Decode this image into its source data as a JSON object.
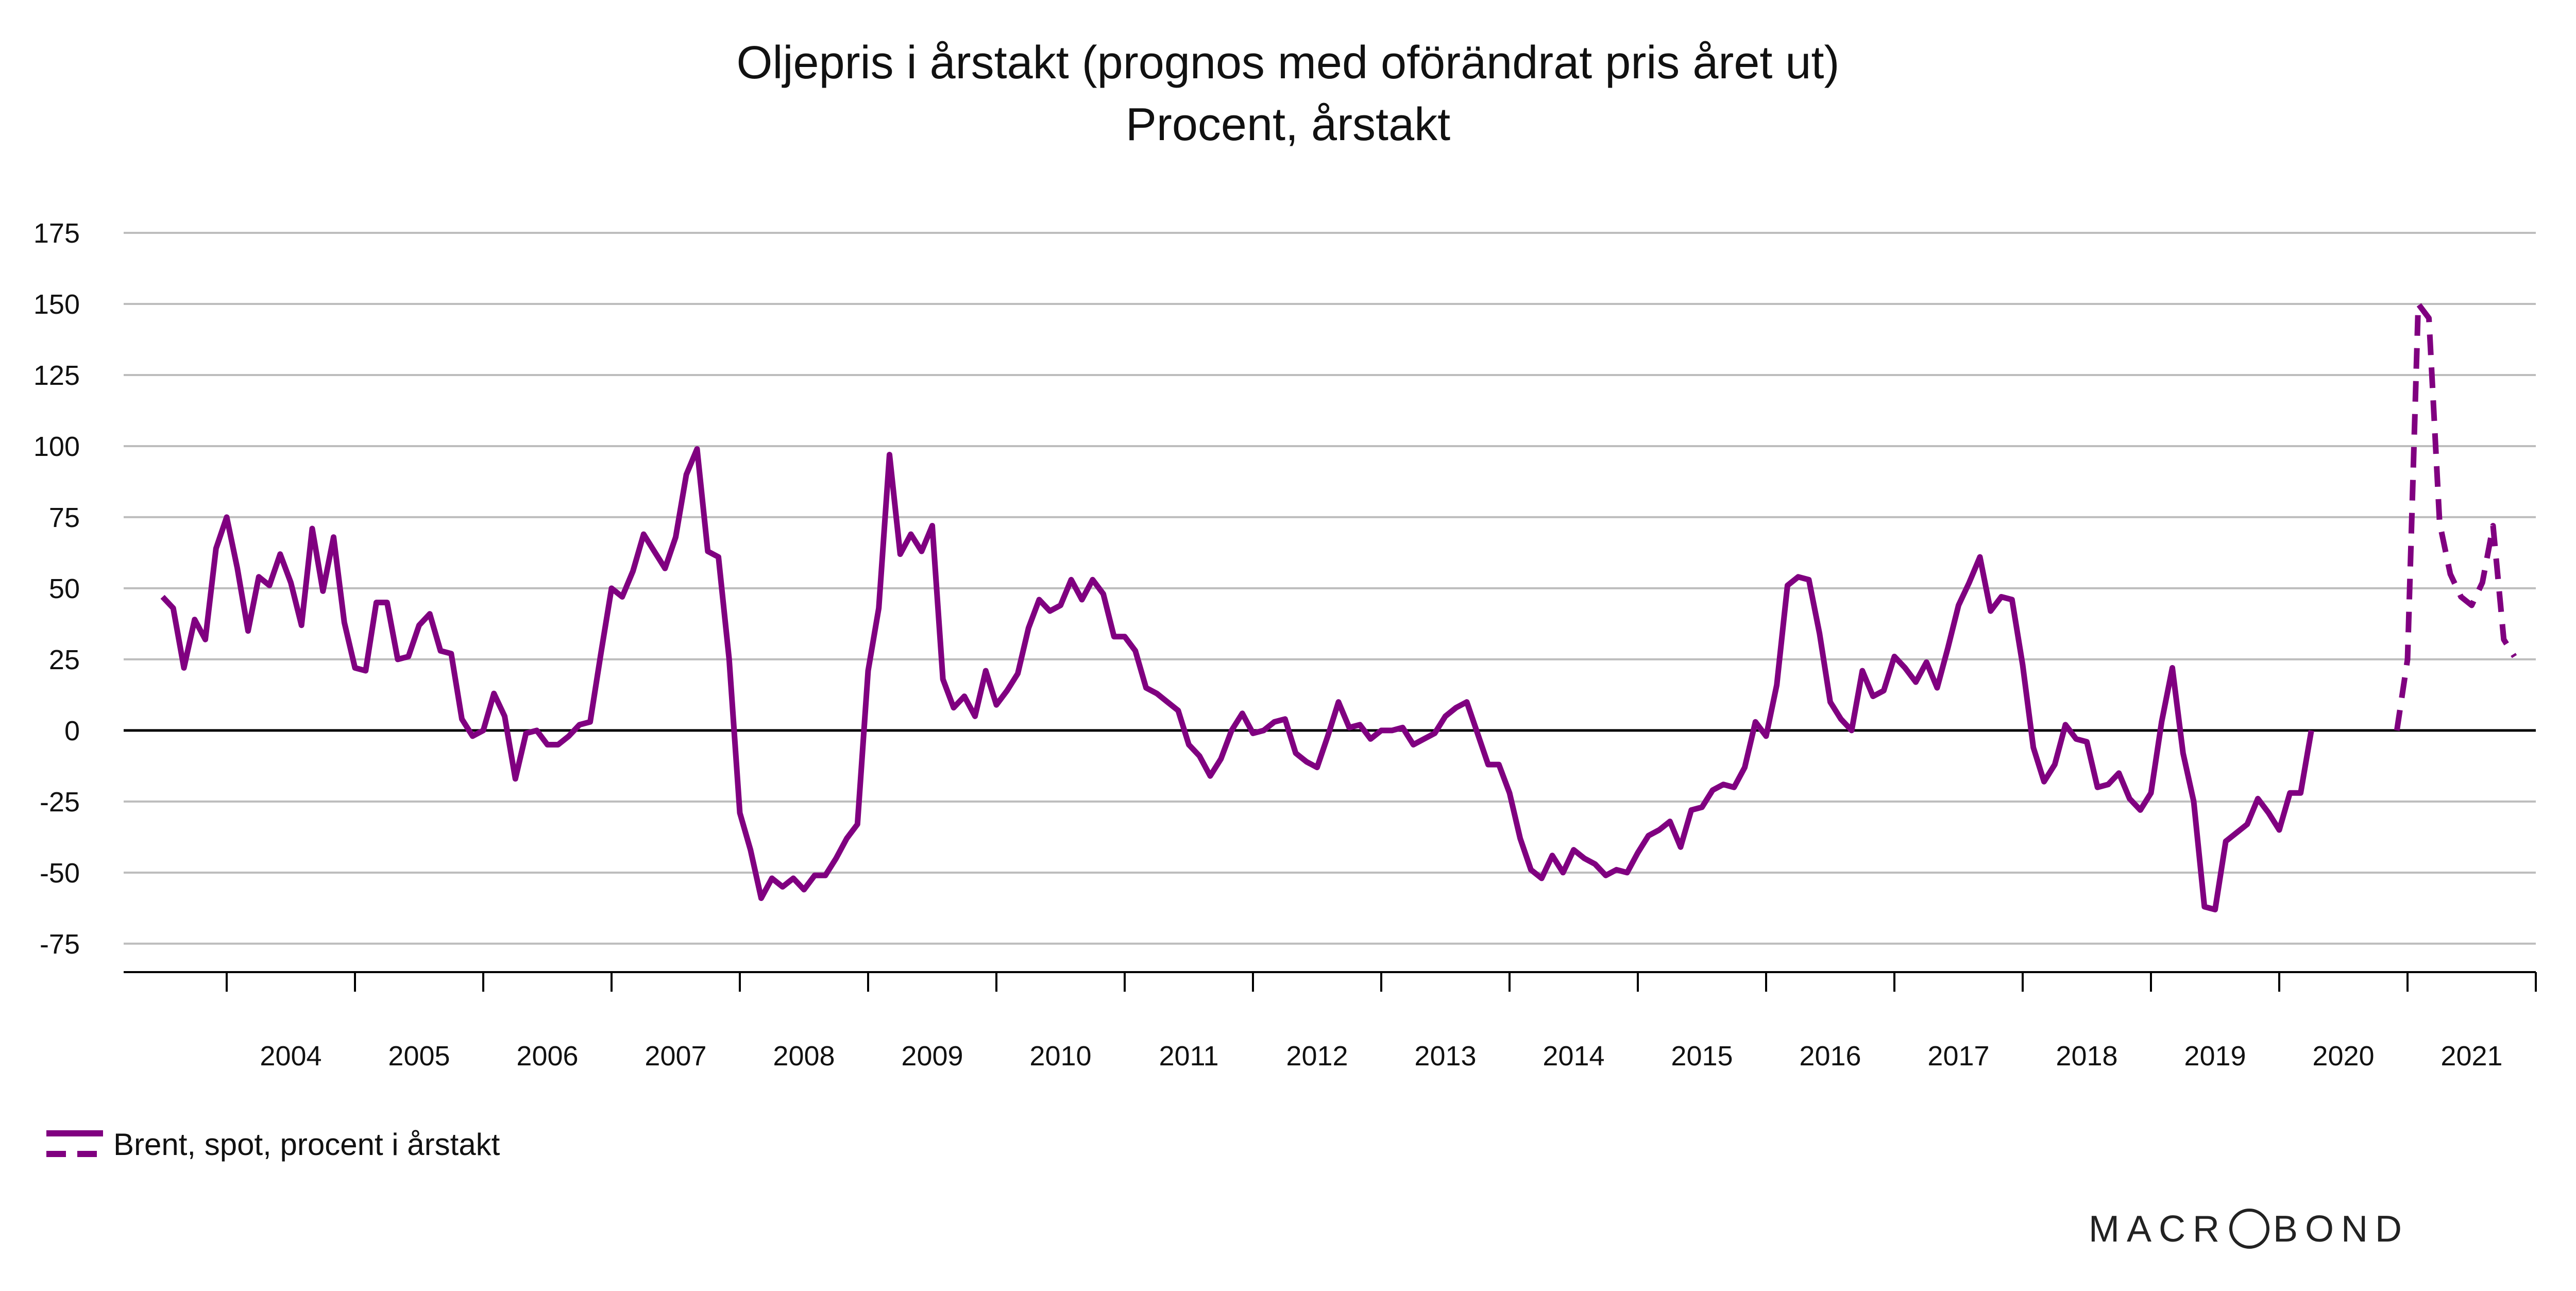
{
  "chart_data": {
    "type": "line",
    "title": "Oljepris i årstakt (prognos med oförändrat pris året ut)",
    "subtitle": "Procent, årstakt",
    "ylim": [
      -85,
      175
    ],
    "y_ticks": [
      175,
      150,
      125,
      100,
      75,
      50,
      25,
      0,
      -25,
      -50,
      -75
    ],
    "x_ticks": [
      "2004",
      "2005",
      "2006",
      "2007",
      "2008",
      "2009",
      "2010",
      "2011",
      "2012",
      "2013",
      "2014",
      "2015",
      "2016",
      "2017",
      "2018",
      "2019",
      "2020",
      "2021"
    ],
    "grid": true,
    "legend_position": "bottom-left",
    "colors": {
      "series": "#800080",
      "grid": "#bdbdbd",
      "zero_line": "#000000"
    },
    "series": [
      {
        "name": "Brent, spot, procent i årstakt",
        "style": "solid",
        "x_start": "2003-07",
        "frequency": "monthly",
        "values": [
          47,
          43,
          22,
          39,
          32,
          64,
          75,
          57,
          35,
          54,
          51,
          62,
          52,
          37,
          71,
          49,
          68,
          38,
          22,
          21,
          45,
          45,
          25,
          26,
          37,
          41,
          28,
          27,
          4,
          -2,
          0,
          13,
          5,
          -17,
          -1,
          0,
          -5,
          -5,
          -2,
          2,
          3,
          27,
          50,
          47,
          56,
          69,
          63,
          57,
          68,
          90,
          99,
          63,
          61,
          25,
          -29,
          -42,
          -59,
          -52,
          -55,
          -52,
          -56,
          -51,
          -51,
          -45,
          -38,
          -33,
          21,
          43,
          97,
          62,
          69,
          63,
          72,
          18,
          8,
          12,
          5,
          21,
          9,
          14,
          20,
          36,
          46,
          42,
          44,
          53,
          46,
          53,
          48,
          33,
          33,
          28,
          15,
          13,
          10,
          7,
          -5,
          -9,
          -16,
          -10,
          0,
          6,
          -1,
          0,
          3,
          4,
          -8,
          -11,
          -13,
          -2,
          10,
          1,
          2,
          -3,
          0,
          0,
          1,
          -5,
          -3,
          -1,
          5,
          8,
          10,
          -1,
          -12,
          -12,
          -22,
          -38,
          -49,
          -52,
          -44,
          -50,
          -42,
          -45,
          -47,
          -51,
          -49,
          -50,
          -43,
          -37,
          -35,
          -32,
          -41,
          -28,
          -27,
          -21,
          -19,
          -20,
          -13,
          3,
          -2,
          16,
          51,
          54,
          53,
          34,
          10,
          4,
          0,
          21,
          12,
          14,
          26,
          22,
          17,
          24,
          15,
          29,
          44,
          52,
          61,
          42,
          47,
          46,
          23,
          -6,
          -18,
          -12,
          2,
          -3,
          -4,
          -20,
          -19,
          -15,
          -24,
          -28,
          -22,
          3,
          22,
          -8,
          -25,
          -62,
          -63,
          -39,
          -36,
          -33,
          -24,
          -29,
          -35,
          -22,
          -22,
          0
        ]
      },
      {
        "name": "Brent, spot, procent i årstakt",
        "style": "dashed",
        "x_start": "2020-12",
        "frequency": "monthly",
        "values": [
          0,
          25,
          150,
          145,
          73,
          55,
          47,
          44,
          52,
          72,
          32,
          26
        ]
      }
    ]
  },
  "legend": {
    "label": "Brent, spot, procent i årstakt"
  },
  "brand": {
    "before": "MACR",
    "after": "BOND"
  }
}
